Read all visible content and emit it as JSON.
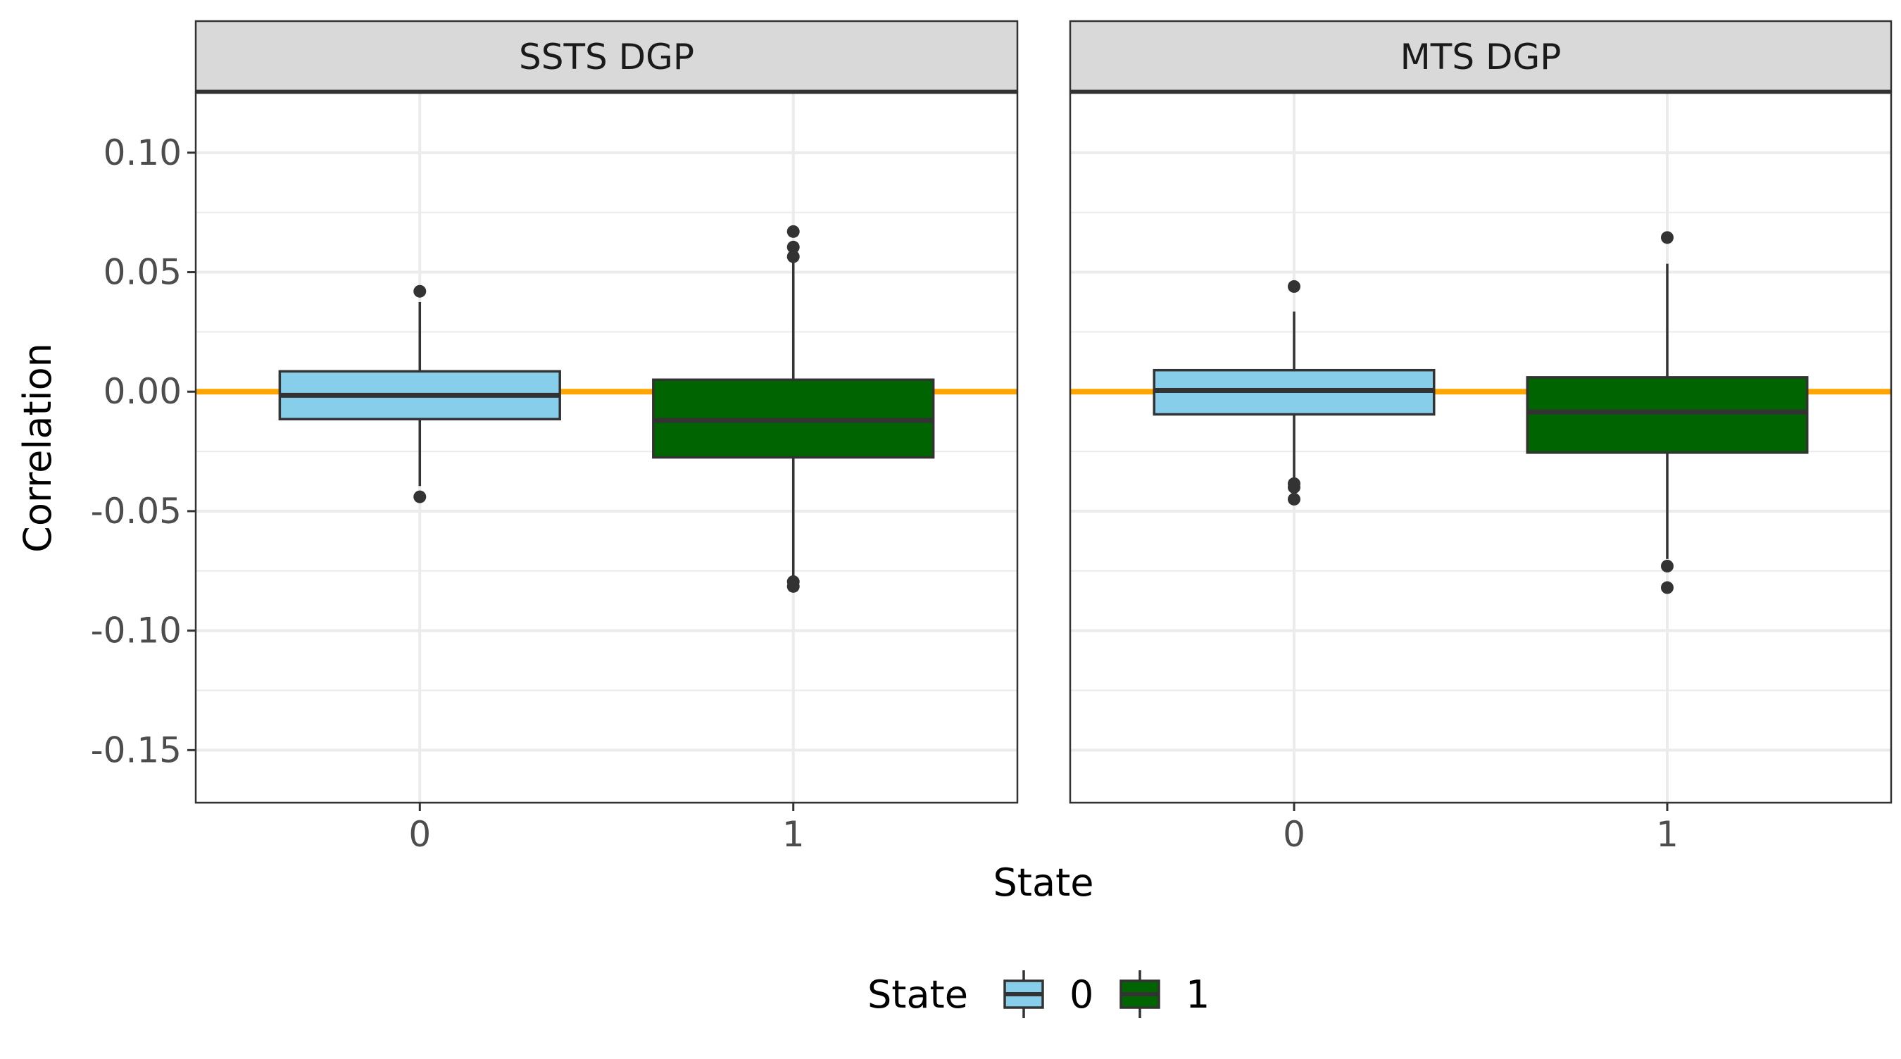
{
  "chart_data": {
    "type": "box",
    "ylabel": "Correlation",
    "xlabel": "State",
    "ylim": [
      -0.172,
      0.125
    ],
    "yticks": [
      0.1,
      0.05,
      0.0,
      -0.05,
      -0.1,
      -0.15
    ],
    "ytick_labels": [
      "0.10",
      "0.05",
      "0.00",
      "-0.05",
      "-0.10",
      "-0.15"
    ],
    "categories": [
      "0",
      "1"
    ],
    "reference_line": {
      "y": 0.0,
      "color": "#FFA500"
    },
    "grid": true,
    "legend": {
      "title": "State",
      "position": "bottom",
      "entries": [
        {
          "label": "0",
          "color": "#87CEEB"
        },
        {
          "label": "1",
          "color": "#006400"
        }
      ]
    },
    "colors": {
      "0": "#87CEEB",
      "1": "#006400",
      "outline": "#333333",
      "strip": "#D9D9D9"
    },
    "panels": [
      {
        "title": "SSTS DGP",
        "boxes": [
          {
            "category": "0",
            "q1": -0.0115,
            "median": -0.0015,
            "q3": 0.0085,
            "whisker_low": -0.0395,
            "whisker_high": 0.0375,
            "outliers": [
              0.042,
              -0.044
            ]
          },
          {
            "category": "1",
            "q1": -0.0275,
            "median": -0.012,
            "q3": 0.005,
            "whisker_low": -0.079,
            "whisker_high": 0.055,
            "outliers": [
              0.067,
              0.0605,
              0.0565,
              -0.0795,
              -0.0815
            ]
          }
        ]
      },
      {
        "title": "MTS DGP",
        "boxes": [
          {
            "category": "0",
            "q1": -0.0095,
            "median": 0.0005,
            "q3": 0.009,
            "whisker_low": -0.037,
            "whisker_high": 0.0335,
            "outliers": [
              0.044,
              -0.0385,
              -0.04,
              -0.045
            ]
          },
          {
            "category": "1",
            "q1": -0.0255,
            "median": -0.0085,
            "q3": 0.006,
            "whisker_low": -0.07,
            "whisker_high": 0.0535,
            "outliers": [
              0.0645,
              -0.073,
              -0.082
            ]
          }
        ]
      }
    ]
  }
}
